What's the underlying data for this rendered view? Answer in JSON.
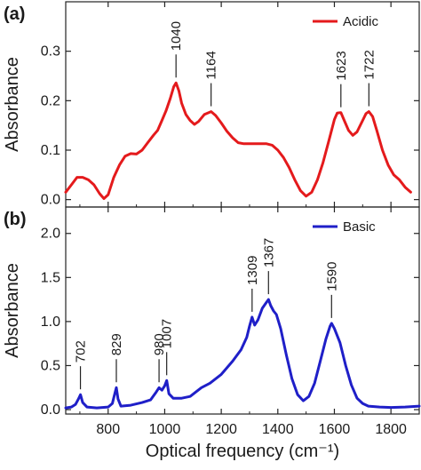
{
  "chart_data": [
    {
      "panel_label": "(a)",
      "type": "line",
      "ylabel": "Absorbance",
      "xlabel": "",
      "xlim": [
        650,
        1900
      ],
      "ylim": [
        -0.015,
        0.4
      ],
      "xticks": [
        800,
        1000,
        1200,
        1400,
        1600,
        1800
      ],
      "yticks": [
        0.0,
        0.1,
        0.2,
        0.3
      ],
      "ytick_labels": [
        "0.0",
        "0.1",
        "0.2",
        "0.3"
      ],
      "legend": {
        "position": "top-right"
      },
      "series": [
        {
          "name": "Acidic",
          "color": "#e41a1c",
          "points": [
            [
              650,
              0.015
            ],
            [
              670,
              0.03
            ],
            [
              690,
              0.045
            ],
            [
              710,
              0.045
            ],
            [
              730,
              0.04
            ],
            [
              750,
              0.03
            ],
            [
              770,
              0.012
            ],
            [
              785,
              0.002
            ],
            [
              800,
              0.01
            ],
            [
              820,
              0.045
            ],
            [
              840,
              0.07
            ],
            [
              860,
              0.088
            ],
            [
              880,
              0.093
            ],
            [
              900,
              0.092
            ],
            [
              920,
              0.1
            ],
            [
              940,
              0.115
            ],
            [
              960,
              0.13
            ],
            [
              975,
              0.14
            ],
            [
              990,
              0.16
            ],
            [
              1005,
              0.18
            ],
            [
              1020,
              0.205
            ],
            [
              1032,
              0.228
            ],
            [
              1040,
              0.236
            ],
            [
              1050,
              0.22
            ],
            [
              1060,
              0.195
            ],
            [
              1075,
              0.172
            ],
            [
              1090,
              0.16
            ],
            [
              1105,
              0.152
            ],
            [
              1120,
              0.158
            ],
            [
              1140,
              0.172
            ],
            [
              1164,
              0.178
            ],
            [
              1180,
              0.17
            ],
            [
              1200,
              0.155
            ],
            [
              1220,
              0.138
            ],
            [
              1240,
              0.125
            ],
            [
              1260,
              0.115
            ],
            [
              1280,
              0.113
            ],
            [
              1300,
              0.113
            ],
            [
              1320,
              0.113
            ],
            [
              1340,
              0.113
            ],
            [
              1360,
              0.113
            ],
            [
              1380,
              0.11
            ],
            [
              1400,
              0.1
            ],
            [
              1420,
              0.085
            ],
            [
              1440,
              0.065
            ],
            [
              1460,
              0.04
            ],
            [
              1480,
              0.018
            ],
            [
              1500,
              0.007
            ],
            [
              1520,
              0.015
            ],
            [
              1540,
              0.04
            ],
            [
              1560,
              0.075
            ],
            [
              1580,
              0.118
            ],
            [
              1600,
              0.162
            ],
            [
              1610,
              0.175
            ],
            [
              1623,
              0.176
            ],
            [
              1635,
              0.16
            ],
            [
              1650,
              0.14
            ],
            [
              1665,
              0.13
            ],
            [
              1680,
              0.137
            ],
            [
              1700,
              0.16
            ],
            [
              1712,
              0.174
            ],
            [
              1722,
              0.178
            ],
            [
              1735,
              0.168
            ],
            [
              1750,
              0.14
            ],
            [
              1770,
              0.1
            ],
            [
              1790,
              0.07
            ],
            [
              1810,
              0.05
            ],
            [
              1830,
              0.04
            ],
            [
              1850,
              0.025
            ],
            [
              1870,
              0.015
            ]
          ]
        }
      ],
      "annotations": [
        {
          "label": "1040",
          "x": 1040
        },
        {
          "label": "1164",
          "x": 1164
        },
        {
          "label": "1623",
          "x": 1623
        },
        {
          "label": "1722",
          "x": 1722
        }
      ]
    },
    {
      "panel_label": "(b)",
      "type": "line",
      "ylabel": "Absorbance",
      "xlabel": "Optical frequency (cm⁻¹)",
      "xlim": [
        650,
        1900
      ],
      "ylim": [
        -0.05,
        2.3
      ],
      "xticks": [
        800,
        1000,
        1200,
        1400,
        1600,
        1800
      ],
      "xtick_labels": [
        "800",
        "1000",
        "1200",
        "1400",
        "1600",
        "1800"
      ],
      "yticks": [
        0.0,
        0.5,
        1.0,
        1.5,
        2.0
      ],
      "ytick_labels": [
        "0.0",
        "0.5",
        "1.0",
        "1.5",
        "2.0"
      ],
      "legend": {
        "position": "top-right"
      },
      "series": [
        {
          "name": "Basic",
          "color": "#1f1fc8",
          "points": [
            [
              650,
              0.02
            ],
            [
              670,
              0.03
            ],
            [
              685,
              0.06
            ],
            [
              695,
              0.12
            ],
            [
              702,
              0.17
            ],
            [
              710,
              0.08
            ],
            [
              725,
              0.03
            ],
            [
              760,
              0.02
            ],
            [
              800,
              0.03
            ],
            [
              815,
              0.07
            ],
            [
              825,
              0.2
            ],
            [
              829,
              0.25
            ],
            [
              835,
              0.12
            ],
            [
              845,
              0.04
            ],
            [
              880,
              0.05
            ],
            [
              920,
              0.08
            ],
            [
              950,
              0.11
            ],
            [
              970,
              0.2
            ],
            [
              980,
              0.25
            ],
            [
              990,
              0.22
            ],
            [
              1000,
              0.27
            ],
            [
              1007,
              0.33
            ],
            [
              1015,
              0.18
            ],
            [
              1030,
              0.13
            ],
            [
              1060,
              0.13
            ],
            [
              1090,
              0.15
            ],
            [
              1110,
              0.2
            ],
            [
              1130,
              0.25
            ],
            [
              1160,
              0.3
            ],
            [
              1200,
              0.4
            ],
            [
              1240,
              0.55
            ],
            [
              1270,
              0.68
            ],
            [
              1290,
              0.82
            ],
            [
              1300,
              0.95
            ],
            [
              1309,
              1.05
            ],
            [
              1318,
              0.96
            ],
            [
              1330,
              1.02
            ],
            [
              1345,
              1.15
            ],
            [
              1360,
              1.22
            ],
            [
              1367,
              1.25
            ],
            [
              1375,
              1.18
            ],
            [
              1385,
              1.12
            ],
            [
              1395,
              1.08
            ],
            [
              1410,
              0.92
            ],
            [
              1430,
              0.62
            ],
            [
              1450,
              0.35
            ],
            [
              1470,
              0.17
            ],
            [
              1490,
              0.1
            ],
            [
              1510,
              0.15
            ],
            [
              1530,
              0.3
            ],
            [
              1550,
              0.55
            ],
            [
              1570,
              0.8
            ],
            [
              1585,
              0.95
            ],
            [
              1590,
              0.98
            ],
            [
              1600,
              0.92
            ],
            [
              1620,
              0.76
            ],
            [
              1640,
              0.5
            ],
            [
              1660,
              0.28
            ],
            [
              1680,
              0.13
            ],
            [
              1700,
              0.07
            ],
            [
              1720,
              0.04
            ],
            [
              1760,
              0.03
            ],
            [
              1800,
              0.025
            ],
            [
              1850,
              0.03
            ],
            [
              1900,
              0.04
            ]
          ]
        }
      ],
      "annotations": [
        {
          "label": "702",
          "x": 702
        },
        {
          "label": "829",
          "x": 829
        },
        {
          "label": "980",
          "x": 980
        },
        {
          "label": "1007",
          "x": 1007
        },
        {
          "label": "1309",
          "x": 1309
        },
        {
          "label": "1367",
          "x": 1367
        },
        {
          "label": "1590",
          "x": 1590
        }
      ]
    }
  ]
}
